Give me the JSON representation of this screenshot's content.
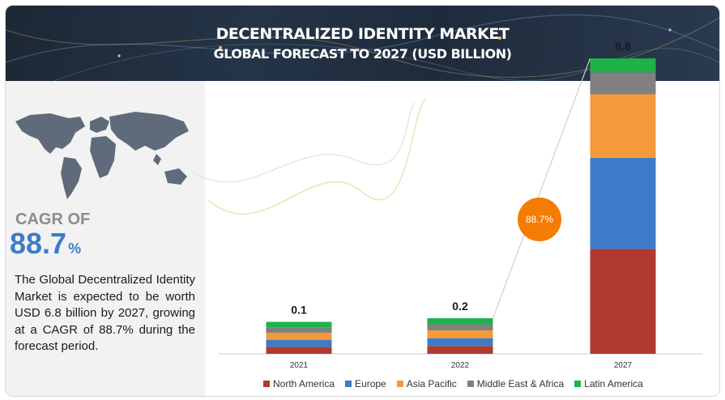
{
  "header": {
    "title": "DECENTRALIZED IDENTITY MARKET",
    "subtitle": "GLOBAL FORECAST TO 2027 (USD BILLION)"
  },
  "sidebar": {
    "cagr_label": "CAGR OF",
    "cagr_value": "88.7",
    "cagr_unit": "%",
    "description": "The Global Decentralized Identity Market is expected to be worth USD  6.8 billion by 2027, growing at a CAGR of 88.7% during the forecast period."
  },
  "chart_data": {
    "type": "bar",
    "stacked": true,
    "categories": [
      "2021",
      "2022",
      "2027"
    ],
    "totals": [
      "0.1",
      "0.2",
      "6.8"
    ],
    "total_values": [
      0.1,
      0.2,
      6.8
    ],
    "series": [
      {
        "name": "North America",
        "color": "#b03a2e",
        "shares": [
          0.22,
          0.22,
          0.38
        ]
      },
      {
        "name": "Europe",
        "color": "#3d7cc9",
        "shares": [
          0.22,
          0.22,
          0.33
        ]
      },
      {
        "name": "Asia Pacific",
        "color": "#f59a3a",
        "shares": [
          0.22,
          0.22,
          0.23
        ]
      },
      {
        "name": "Middle East & Africa",
        "color": "#808080",
        "shares": [
          0.17,
          0.17,
          0.08
        ]
      },
      {
        "name": "Latin America",
        "color": "#1db34a",
        "shares": [
          0.17,
          0.17,
          0.05
        ]
      }
    ],
    "growth_badge": "88.7%",
    "growth_badge_color": "#f57c00",
    "legend_position": "bottom",
    "grid": false
  }
}
